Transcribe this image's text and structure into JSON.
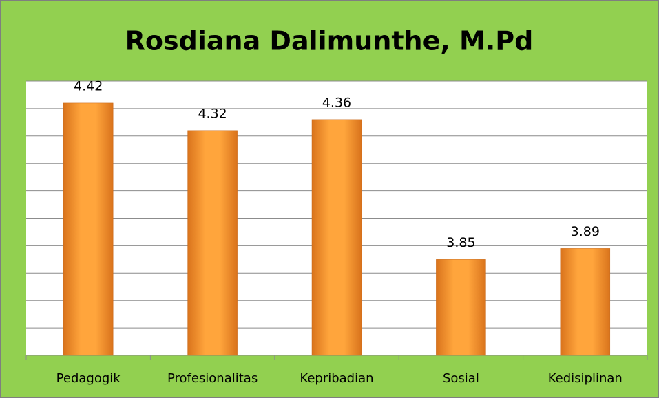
{
  "chart_data": {
    "type": "bar",
    "title": "Rosdiana Dalimunthe, M.Pd",
    "categories": [
      "Pedagogik",
      "Profesionalitas",
      "Kepribadian",
      "Sosial",
      "Kedisiplinan"
    ],
    "values": [
      4.42,
      4.32,
      4.36,
      3.85,
      3.89
    ],
    "color": "#f39a2e",
    "ylim": [
      3.5,
      4.5
    ],
    "yticks": [
      3.5,
      3.6,
      3.7,
      3.8,
      3.9,
      4.0,
      4.1,
      4.2,
      4.3,
      4.4,
      4.5
    ],
    "grid": true
  }
}
